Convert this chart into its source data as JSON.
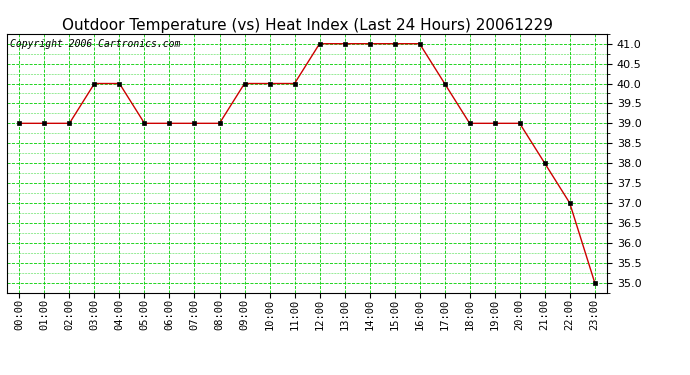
{
  "title": "Outdoor Temperature (vs) Heat Index (Last 24 Hours) 20061229",
  "copyright": "Copyright 2006 Cartronics.com",
  "x_labels": [
    "00:00",
    "01:00",
    "02:00",
    "03:00",
    "04:00",
    "05:00",
    "06:00",
    "07:00",
    "08:00",
    "09:00",
    "10:00",
    "11:00",
    "12:00",
    "13:00",
    "14:00",
    "15:00",
    "16:00",
    "17:00",
    "18:00",
    "19:00",
    "20:00",
    "21:00",
    "22:00",
    "23:00"
  ],
  "y_values": [
    39.0,
    39.0,
    39.0,
    40.0,
    40.0,
    39.0,
    39.0,
    39.0,
    39.0,
    40.0,
    40.0,
    40.0,
    41.0,
    41.0,
    41.0,
    41.0,
    41.0,
    40.0,
    39.0,
    39.0,
    39.0,
    38.0,
    37.0,
    35.0
  ],
  "ylim_min": 34.75,
  "ylim_max": 41.25,
  "yticks": [
    35.0,
    35.5,
    36.0,
    36.5,
    37.0,
    37.5,
    38.0,
    38.5,
    39.0,
    39.5,
    40.0,
    40.5,
    41.0
  ],
  "line_color": "#CC0000",
  "marker_color": "#000000",
  "bg_color": "#FFFFFF",
  "plot_bg_color": "#FFFFFF",
  "grid_major_color": "#00CC00",
  "grid_minor_color": "#00CC00",
  "title_fontsize": 11,
  "copyright_fontsize": 7,
  "tick_fontsize": 7.5,
  "ylabel_fontsize": 8
}
